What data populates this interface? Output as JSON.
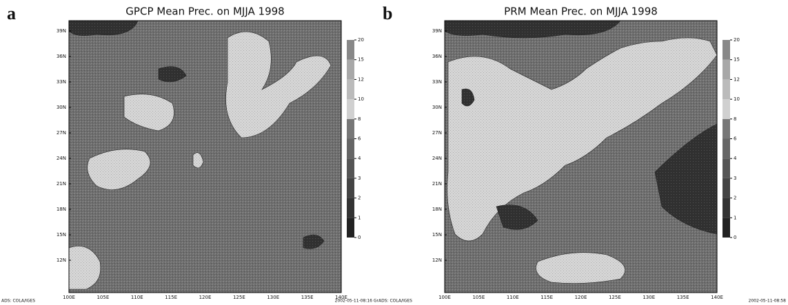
{
  "panels": [
    {
      "label": "a",
      "title": "GPCP Mean Prec. on MJJA 1998",
      "yticks": [
        "39N",
        "36N",
        "33N",
        "30N",
        "27N",
        "24N",
        "21N",
        "18N",
        "15N",
        "12N"
      ],
      "xticks": [
        "100E",
        "105E",
        "110E",
        "115E",
        "120E",
        "125E",
        "130E",
        "135E",
        "140E"
      ],
      "colorbar": [
        0,
        1,
        2,
        3,
        4,
        6,
        8,
        10,
        12,
        15,
        20
      ],
      "footer": "ADS: COLA/IGES"
    },
    {
      "label": "b",
      "title": "PRM Mean Prec. on MJJA 1998",
      "yticks": [
        "39N",
        "36N",
        "33N",
        "30N",
        "27N",
        "24N",
        "21N",
        "18N",
        "15N",
        "12N"
      ],
      "xticks": [
        "100E",
        "105E",
        "110E",
        "115E",
        "120E",
        "125E",
        "130E",
        "135E",
        "140E"
      ],
      "colorbar": [
        0,
        1,
        2,
        3,
        4,
        6,
        8,
        10,
        12,
        15,
        20
      ],
      "footer": "2002-05-11-08:16 GrADS: COLA/IGES"
    }
  ],
  "timestamp": "2002-05-11-08:58",
  "colorbar_colors": [
    "#222222",
    "#333333",
    "#444444",
    "#555555",
    "#666666",
    "#777777",
    "#d0d0d0",
    "#bbbbbb",
    "#a8a8a8",
    "#888888"
  ]
}
